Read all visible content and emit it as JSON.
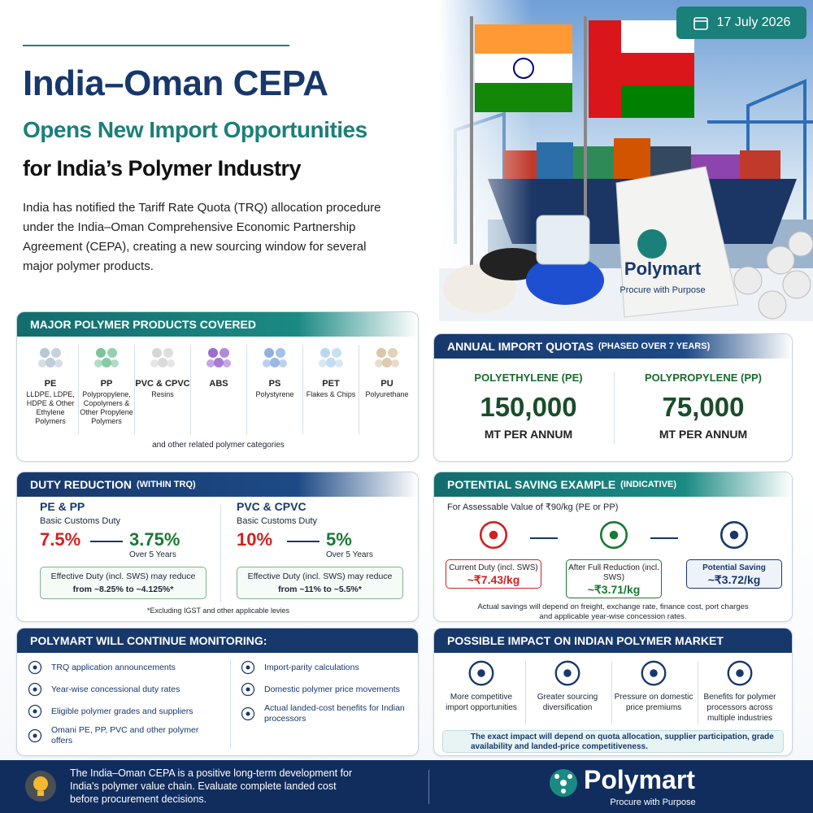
{
  "header": {
    "date": "17 July 2026",
    "title": "India–Oman CEPA",
    "subtitle": "Opens New Import Opportunities",
    "tagline": "for India’s Polymer Industry",
    "intro": "India has notified the Tariff Rate Quota (TRQ) allocation procedure under the India–Oman Comprehensive Economic Partnership Agreement (CEPA), creating a new sourcing window for several major polymer products."
  },
  "hero": {
    "bag_brand": "Polymart",
    "bag_tagline": "Procure with Purpose"
  },
  "products": {
    "heading": "MAJOR POLYMER PRODUCTS COVERED",
    "items": [
      {
        "name": "PE",
        "desc": "LLDPE, LDPE, HDPE & Other Ethylene Polymers"
      },
      {
        "name": "PP",
        "desc": "Polypropylene, Copolymers & Other Propylene Polymers"
      },
      {
        "name": "PVC & CPVC",
        "desc": "Resins"
      },
      {
        "name": "ABS",
        "desc": ""
      },
      {
        "name": "PS",
        "desc": "Polystyrene"
      },
      {
        "name": "PET",
        "desc": "Flakes & Chips"
      },
      {
        "name": "PU",
        "desc": "Polyurethane"
      }
    ],
    "note": "and other related polymer categories"
  },
  "quotas": {
    "heading": "ANNUAL IMPORT QUOTAS",
    "heading_note": "(PHASED OVER 7 YEARS)",
    "items": [
      {
        "label": "POLYETHYLENE (PE)",
        "value": "150,000",
        "unit": "MT PER ANNUM"
      },
      {
        "label": "POLYPROPYLENE (PP)",
        "value": "75,000",
        "unit": "MT PER ANNUM"
      }
    ]
  },
  "duty": {
    "heading": "DUTY REDUCTION",
    "heading_note": "(WITHIN TRQ)",
    "groups": [
      {
        "name": "PE & PP",
        "label": "Basic Customs Duty",
        "from": "7.5%",
        "to": "3.75%",
        "period": "Over 5 Years",
        "effective": "Effective Duty (incl. SWS) may reduce",
        "effective_range": "from ~8.25% to ~4.125%*"
      },
      {
        "name": "PVC & CPVC",
        "label": "Basic Customs Duty",
        "from": "10%",
        "to": "5%",
        "period": "Over 5 Years",
        "effective": "Effective Duty (incl. SWS) may reduce",
        "effective_range": "from ~11% to ~5.5%*"
      }
    ],
    "footnote": "*Excluding IGST and other applicable levies"
  },
  "saving": {
    "heading": "POTENTIAL SAVING EXAMPLE",
    "heading_note": "(INDICATIVE)",
    "basis": "For Assessable Value of ₹90/kg (PE or PP)",
    "steps": [
      {
        "label": "Current Duty (incl. SWS)",
        "value": "~₹7.43/kg"
      },
      {
        "label": "After Full Reduction (incl. SWS)",
        "value": "~₹3.71/kg"
      },
      {
        "label": "Potential Saving",
        "value": "~₹3.72/kg"
      }
    ],
    "disclaimer": "Actual savings will depend on freight, exchange rate, finance cost, port charges and applicable year-wise concession rates."
  },
  "monitoring": {
    "heading": "POLYMART WILL CONTINUE MONITORING:",
    "columns": [
      [
        "TRQ application announcements",
        "Year-wise concessional duty rates",
        "Eligible polymer grades and suppliers",
        "Omani PE, PP, PVC and other polymer offers"
      ],
      [
        "Import-parity calculations",
        "Domestic polymer price movements",
        "Actual landed-cost benefits for Indian processors"
      ]
    ]
  },
  "impact": {
    "heading": "POSSIBLE IMPACT ON INDIAN POLYMER MARKET",
    "items": [
      "More competitive import opportunities",
      "Greater sourcing diversification",
      "Pressure on domestic price premiums",
      "Benefits for polymer processors across multiple industries"
    ],
    "note": "The exact impact will depend on quota allocation, supplier participation, grade availability and landed-price competitiveness."
  },
  "footer": {
    "message": "The India–Oman CEPA is a positive long-term development for India's polymer value chain. Evaluate complete landed cost before procurement decisions.",
    "brand": "Polymart",
    "tagline": "Procure with Purpose"
  }
}
